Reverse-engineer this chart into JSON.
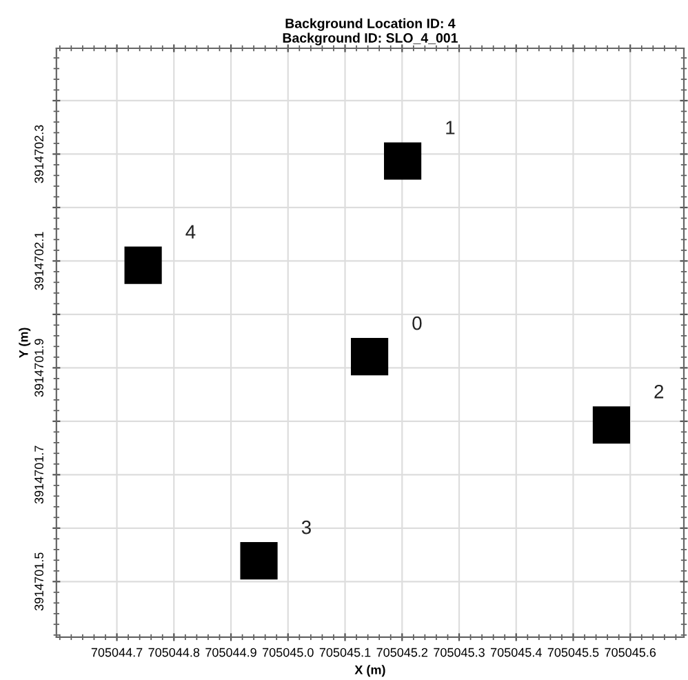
{
  "chart_data": {
    "type": "scatter",
    "title": "Background Location ID: 4\nBackground ID: SLO_4_001",
    "xlabel": "X (m)",
    "ylabel": "Y (m)",
    "x": [
      705045.143,
      705045.201,
      705045.567,
      705044.949,
      705044.746
    ],
    "series": [
      {
        "color": "#000000",
        "values": [
          3914701.921,
          3914702.287,
          3914701.793,
          3914701.539,
          3914702.092
        ]
      }
    ],
    "marker": "square",
    "annotations": [
      {
        "text": "0",
        "x": 705045.143,
        "y": 3914701.921
      },
      {
        "text": "1",
        "x": 705045.201,
        "y": 3914702.287
      },
      {
        "text": "2",
        "x": 705045.567,
        "y": 3914701.793
      },
      {
        "text": "3",
        "x": 705044.949,
        "y": 3914701.539
      },
      {
        "text": "4",
        "x": 705044.746,
        "y": 3914702.092
      }
    ],
    "xlim": [
      705044.594,
      705045.694
    ],
    "ylim": [
      3914701.396,
      3914702.498
    ],
    "xticks": [
      705044.7,
      705044.8,
      705044.9,
      {
        "value": 705045.0,
        "label": "705045.0"
      },
      705045.1,
      705045.2,
      705045.3,
      705045.4,
      705045.5,
      705045.6
    ],
    "yticks": [
      3914701.5,
      {
        "value": 3914701.6,
        "label": null
      },
      3914701.7,
      {
        "value": 3914701.8,
        "label": null
      },
      3914701.9,
      {
        "value": 3914702.0,
        "label": null
      },
      3914702.1,
      {
        "value": 3914702.2,
        "label": null
      },
      3914702.3,
      {
        "value": 3914702.4,
        "label": null
      }
    ],
    "grid": true
  }
}
